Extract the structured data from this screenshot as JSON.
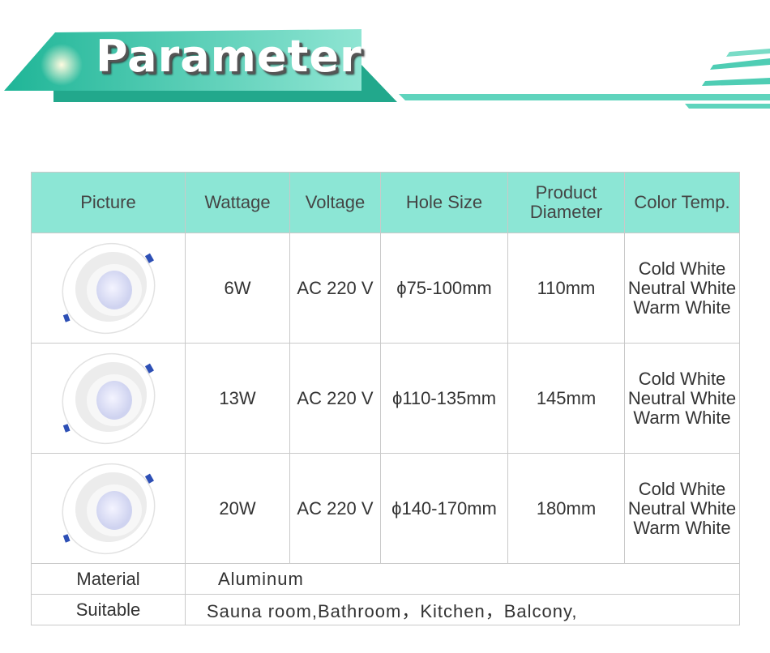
{
  "banner": {
    "title": "Parameter",
    "accent": "#2bbfa3"
  },
  "table": {
    "headers": [
      "Picture",
      "Wattage",
      "Voltage",
      "Hole Size",
      "Product Diameter",
      "Color Temp."
    ],
    "rows": [
      {
        "wattage": "6W",
        "voltage": "AC 220 V",
        "hole": "ϕ75-100mm",
        "diameter": "110mm",
        "temps": [
          "Cold White",
          "Neutral White",
          "Warm White"
        ]
      },
      {
        "wattage": "13W",
        "voltage": "AC 220 V",
        "hole": "ϕ110-135mm",
        "diameter": "145mm",
        "temps": [
          "Cold White",
          "Neutral White",
          "Warm White"
        ]
      },
      {
        "wattage": "20W",
        "voltage": "AC 220 V",
        "hole": "ϕ140-170mm",
        "diameter": "180mm",
        "temps": [
          "Cold White",
          "Neutral White",
          "Warm White"
        ]
      }
    ],
    "material": {
      "label": "Material",
      "value": "Aluminum"
    },
    "suitable": {
      "label": "Suitable",
      "value": "Sauna room,Bathroom，Kitchen，Balcony,"
    }
  }
}
